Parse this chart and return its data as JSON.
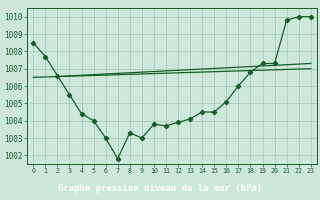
{
  "title": "Graphe pression niveau de la mer (hPa)",
  "bg_color": "#cce8d8",
  "grid_color": "#aaccb8",
  "line_color": "#1a5c2a",
  "label_bg": "#2d7a3a",
  "label_text": "#ffffff",
  "xlim": [
    -0.5,
    23.5
  ],
  "ylim": [
    1001.5,
    1010.5
  ],
  "yticks": [
    1002,
    1003,
    1004,
    1005,
    1006,
    1007,
    1008,
    1009,
    1010
  ],
  "xticks": [
    0,
    1,
    2,
    3,
    4,
    5,
    6,
    7,
    8,
    9,
    10,
    11,
    12,
    13,
    14,
    15,
    16,
    17,
    18,
    19,
    20,
    21,
    22,
    23
  ],
  "line1_x": [
    0,
    1,
    2,
    3,
    4,
    5,
    6,
    7,
    8,
    9,
    10,
    11,
    12,
    13,
    14,
    15,
    16,
    17,
    18,
    19,
    20,
    21,
    22,
    23
  ],
  "line1_y": [
    1008.5,
    1007.7,
    1006.6,
    1005.5,
    1004.4,
    1004.0,
    1003.0,
    1001.8,
    1003.3,
    1003.0,
    1003.8,
    1003.7,
    1003.9,
    1004.1,
    1004.5,
    1004.5,
    1005.1,
    1006.0,
    1006.8,
    1007.3,
    1007.3,
    1009.8,
    1010.0,
    1010.0
  ],
  "line2_x": [
    0,
    23
  ],
  "line2_y": [
    1006.5,
    1007.0
  ],
  "line3_x": [
    2,
    23
  ],
  "line3_y": [
    1006.55,
    1007.3
  ],
  "tick_fontsize": 5.5,
  "tick_fontsize_x": 4.8,
  "title_fontsize": 6.5
}
